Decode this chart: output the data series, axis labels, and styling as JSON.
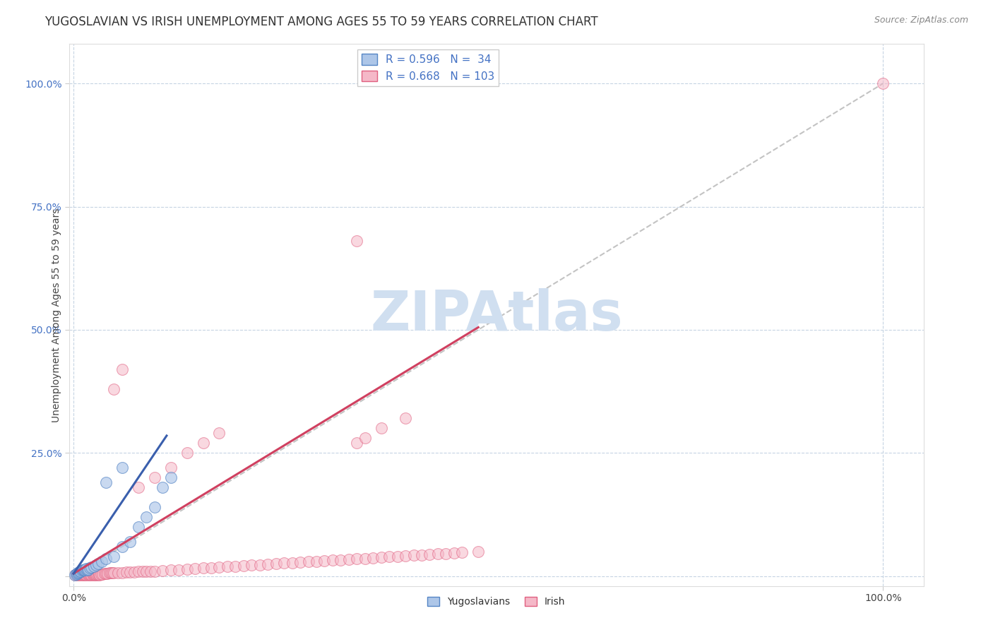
{
  "title": "YUGOSLAVIAN VS IRISH UNEMPLOYMENT AMONG AGES 55 TO 59 YEARS CORRELATION CHART",
  "source": "Source: ZipAtlas.com",
  "ylabel": "Unemployment Among Ages 55 to 59 years",
  "r_yugo": 0.596,
  "n_yugo": 34,
  "r_irish": 0.668,
  "n_irish": 103,
  "yugo_fill_color": "#adc6e8",
  "yugo_edge_color": "#5585c5",
  "irish_fill_color": "#f5b8c8",
  "irish_edge_color": "#e06080",
  "yugo_line_color": "#3a5fad",
  "irish_line_color": "#d04060",
  "gray_line_color": "#aaaaaa",
  "background_color": "#ffffff",
  "grid_color": "#c0d0e0",
  "watermark_color": "#d0dff0",
  "title_fontsize": 12,
  "source_fontsize": 9,
  "axis_label_fontsize": 10,
  "tick_fontsize": 10,
  "legend_fontsize": 11,
  "yugo_scatter_x": [
    0.002,
    0.003,
    0.004,
    0.005,
    0.006,
    0.007,
    0.008,
    0.009,
    0.01,
    0.011,
    0.012,
    0.013,
    0.014,
    0.015,
    0.016,
    0.017,
    0.018,
    0.02,
    0.022,
    0.025,
    0.028,
    0.03,
    0.035,
    0.04,
    0.05,
    0.06,
    0.07,
    0.08,
    0.09,
    0.1,
    0.11,
    0.12,
    0.04,
    0.06
  ],
  "yugo_scatter_y": [
    0.003,
    0.004,
    0.005,
    0.006,
    0.007,
    0.008,
    0.009,
    0.01,
    0.011,
    0.012,
    0.013,
    0.012,
    0.013,
    0.014,
    0.015,
    0.013,
    0.014,
    0.016,
    0.018,
    0.02,
    0.022,
    0.025,
    0.03,
    0.035,
    0.04,
    0.06,
    0.07,
    0.1,
    0.12,
    0.14,
    0.18,
    0.2,
    0.19,
    0.22
  ],
  "irish_scatter_x": [
    0.002,
    0.003,
    0.004,
    0.005,
    0.006,
    0.007,
    0.008,
    0.009,
    0.01,
    0.011,
    0.012,
    0.013,
    0.014,
    0.015,
    0.016,
    0.017,
    0.018,
    0.019,
    0.02,
    0.021,
    0.022,
    0.023,
    0.024,
    0.025,
    0.026,
    0.027,
    0.028,
    0.029,
    0.03,
    0.031,
    0.032,
    0.034,
    0.036,
    0.038,
    0.04,
    0.042,
    0.044,
    0.046,
    0.048,
    0.05,
    0.055,
    0.06,
    0.065,
    0.07,
    0.075,
    0.08,
    0.085,
    0.09,
    0.095,
    0.1,
    0.11,
    0.12,
    0.13,
    0.14,
    0.15,
    0.16,
    0.17,
    0.18,
    0.19,
    0.2,
    0.21,
    0.22,
    0.23,
    0.24,
    0.25,
    0.26,
    0.27,
    0.28,
    0.29,
    0.3,
    0.31,
    0.32,
    0.33,
    0.34,
    0.35,
    0.36,
    0.37,
    0.38,
    0.39,
    0.4,
    0.41,
    0.42,
    0.43,
    0.44,
    0.45,
    0.46,
    0.47,
    0.48,
    0.5,
    0.35,
    0.36,
    0.38,
    0.41,
    0.05,
    0.06,
    0.08,
    0.1,
    0.12,
    0.14,
    0.16,
    0.18,
    0.35,
    1.0
  ],
  "irish_scatter_y": [
    0.003,
    0.004,
    0.003,
    0.004,
    0.003,
    0.004,
    0.003,
    0.004,
    0.003,
    0.004,
    0.003,
    0.004,
    0.003,
    0.004,
    0.003,
    0.004,
    0.003,
    0.004,
    0.003,
    0.004,
    0.003,
    0.004,
    0.003,
    0.004,
    0.003,
    0.004,
    0.003,
    0.004,
    0.003,
    0.004,
    0.003,
    0.004,
    0.004,
    0.005,
    0.005,
    0.005,
    0.006,
    0.006,
    0.006,
    0.007,
    0.007,
    0.007,
    0.008,
    0.008,
    0.008,
    0.009,
    0.009,
    0.01,
    0.01,
    0.01,
    0.011,
    0.012,
    0.013,
    0.014,
    0.015,
    0.016,
    0.017,
    0.018,
    0.019,
    0.02,
    0.021,
    0.022,
    0.023,
    0.024,
    0.025,
    0.026,
    0.027,
    0.028,
    0.029,
    0.03,
    0.031,
    0.032,
    0.033,
    0.034,
    0.035,
    0.036,
    0.037,
    0.038,
    0.039,
    0.04,
    0.041,
    0.042,
    0.043,
    0.044,
    0.045,
    0.046,
    0.047,
    0.048,
    0.05,
    0.27,
    0.28,
    0.3,
    0.32,
    0.38,
    0.42,
    0.18,
    0.2,
    0.22,
    0.25,
    0.27,
    0.29,
    0.68,
    1.0
  ],
  "yugo_trend_x": [
    0.0,
    0.115
  ],
  "yugo_trend_y": [
    0.005,
    0.285
  ],
  "irish_trend_x": [
    0.0,
    0.5
  ],
  "irish_trend_y": [
    0.005,
    0.505
  ],
  "gray_trend_x": [
    0.0,
    1.0
  ],
  "gray_trend_y": [
    0.0,
    1.0
  ],
  "xlim": [
    -0.005,
    1.05
  ],
  "ylim": [
    -0.02,
    1.08
  ],
  "xticks": [
    0.0,
    1.0
  ],
  "xtick_labels": [
    "0.0%",
    "100.0%"
  ],
  "yticks": [
    0.0,
    0.25,
    0.5,
    0.75,
    1.0
  ],
  "ytick_labels": [
    "",
    "25.0%",
    "50.0%",
    "75.0%",
    "100.0%"
  ]
}
